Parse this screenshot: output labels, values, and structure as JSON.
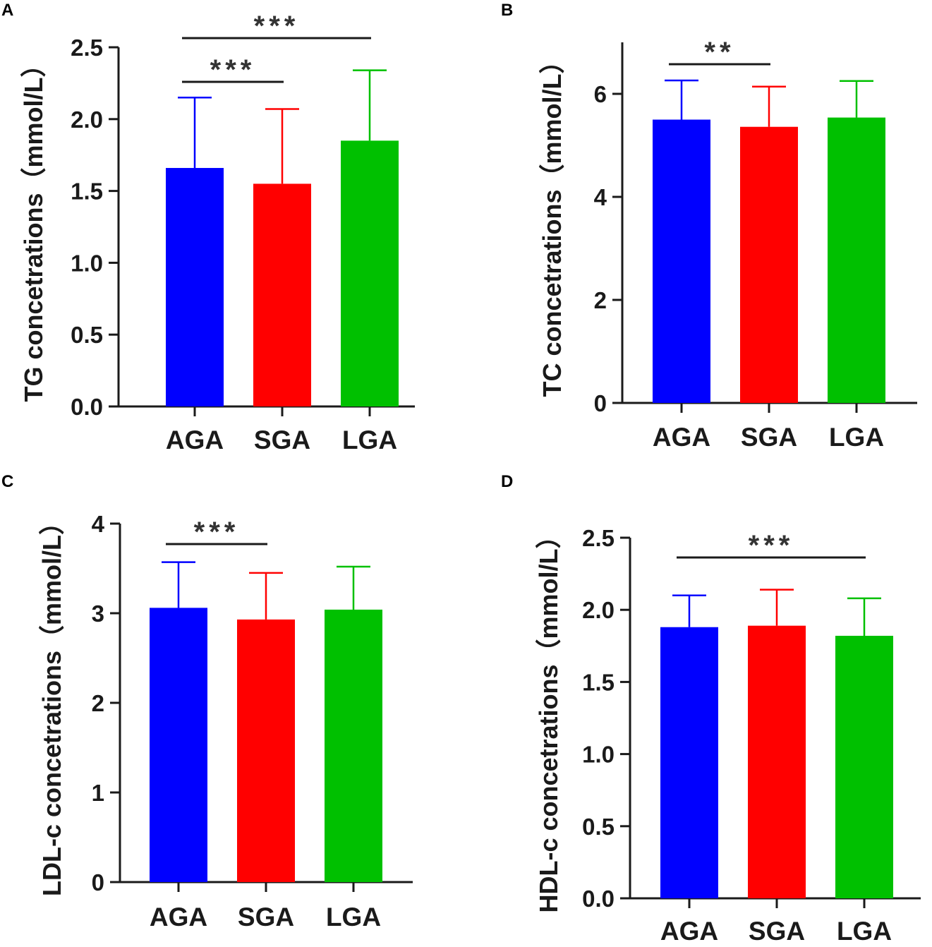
{
  "figure": {
    "colors": {
      "AGA": "#0000ff",
      "SGA": "#ff0000",
      "LGA": "#00c000",
      "axis": "#1a1a1a",
      "sig": "#333333"
    }
  },
  "chart_data": [
    {
      "panel": "A",
      "type": "bar",
      "categories": [
        "AGA",
        "SGA",
        "LGA"
      ],
      "values": [
        1.66,
        1.55,
        1.85
      ],
      "errors": [
        0.49,
        0.52,
        0.49
      ],
      "ylabel": "TG concetrations（mmol/L）",
      "ylim": [
        0,
        2.5
      ],
      "yticks": [
        "0.0",
        "0.5",
        "1.0",
        "1.5",
        "2.0",
        "2.5"
      ],
      "significance": [
        {
          "from": "AGA",
          "to": "SGA",
          "label": "***"
        },
        {
          "from": "AGA",
          "to": "LGA",
          "label": "***"
        }
      ]
    },
    {
      "panel": "B",
      "type": "bar",
      "categories": [
        "AGA",
        "SGA",
        "LGA"
      ],
      "values": [
        5.5,
        5.36,
        5.54
      ],
      "errors": [
        0.76,
        0.78,
        0.71
      ],
      "ylabel": "TC concetrations（mmol/L）",
      "ylim": [
        0,
        7
      ],
      "yticks": [
        "0",
        "2",
        "4",
        "6"
      ],
      "significance": [
        {
          "from": "AGA",
          "to": "SGA",
          "label": "**"
        }
      ]
    },
    {
      "panel": "C",
      "type": "bar",
      "categories": [
        "AGA",
        "SGA",
        "LGA"
      ],
      "values": [
        3.06,
        2.93,
        3.04
      ],
      "errors": [
        0.51,
        0.52,
        0.48
      ],
      "ylabel": "LDL-c concetrations（mmol/L）",
      "ylim": [
        0,
        4
      ],
      "yticks": [
        "0",
        "1",
        "2",
        "3",
        "4"
      ],
      "significance": [
        {
          "from": "AGA",
          "to": "SGA",
          "label": "***"
        }
      ]
    },
    {
      "panel": "D",
      "type": "bar",
      "categories": [
        "AGA",
        "SGA",
        "LGA"
      ],
      "values": [
        1.88,
        1.89,
        1.82
      ],
      "errors": [
        0.22,
        0.25,
        0.26
      ],
      "ylabel": "HDL-c concetrations（mmol/L）",
      "ylim": [
        0,
        2.5
      ],
      "yticks": [
        "0.0",
        "0.5",
        "1.0",
        "1.5",
        "2.0",
        "2.5"
      ],
      "significance": [
        {
          "from": "AGA",
          "to": "LGA",
          "label": "***"
        }
      ]
    }
  ]
}
